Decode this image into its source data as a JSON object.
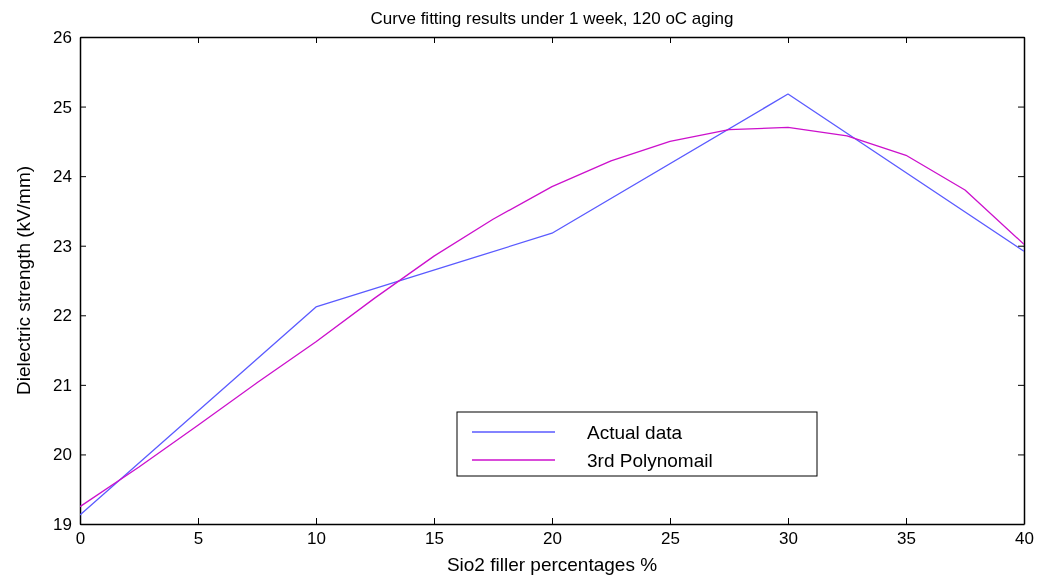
{
  "chart_data": {
    "type": "line",
    "title": "Curve fitting results under 1 week, 120 oC aging",
    "xlabel": "Sio2 filler percentages %",
    "ylabel": "Dielectric strength (kV/mm)",
    "xlim": [
      0,
      40
    ],
    "xticks": [
      0,
      5,
      10,
      15,
      20,
      25,
      30,
      35,
      40
    ],
    "ylim": [
      19,
      26
    ],
    "yticks": [
      19,
      20,
      21,
      22,
      23,
      24,
      25,
      26
    ],
    "grid": false,
    "legend": "bottom",
    "marker": "none",
    "line_style": "solid",
    "series": [
      {
        "name": "Actual data",
        "color": "#5a5aff",
        "x": [
          0,
          10,
          20,
          30,
          40
        ],
        "values": [
          19.13,
          22.12,
          23.18,
          25.18,
          22.92
        ]
      },
      {
        "name": "3rd Polynomail",
        "color": "#cc10cc",
        "x": [
          0,
          2.5,
          5,
          7.5,
          10,
          12.5,
          15,
          17.5,
          20,
          22.5,
          25,
          27.5,
          30,
          32.5,
          35,
          37.5,
          40
        ],
        "values": [
          19.25,
          19.82,
          20.42,
          21.03,
          21.62,
          22.25,
          22.85,
          23.38,
          23.85,
          24.22,
          24.5,
          24.67,
          24.7,
          24.58,
          24.3,
          23.8,
          23.02
        ]
      }
    ]
  }
}
